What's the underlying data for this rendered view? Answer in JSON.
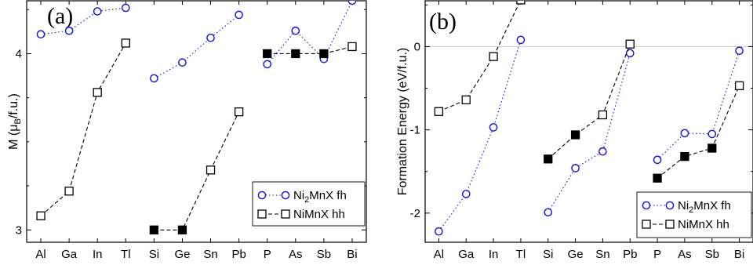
{
  "chart_data": [
    {
      "type": "scatter",
      "panel_label": "(a)",
      "ylabel": {
        "main": "M  (",
        "mu": "μ",
        "sub": "B",
        "rest": "/f.u.)"
      },
      "categories": [
        "Al",
        "Ga",
        "In",
        "Tl",
        "Si",
        "Ge",
        "Sn",
        "Pb",
        "P",
        "As",
        "Sb",
        "Bi"
      ],
      "groups": [
        [
          0,
          1,
          2,
          3
        ],
        [
          4,
          5,
          6,
          7
        ],
        [
          8,
          9,
          10,
          11
        ]
      ],
      "ylim": [
        2.93,
        4.3
      ],
      "yticks": [
        "3",
        "4"
      ],
      "ytick_values": [
        3,
        4
      ],
      "series": [
        {
          "name_parts": [
            "Ni",
            "2",
            "MnX fh"
          ],
          "marker": "circle",
          "color": "#1010e0",
          "line": "dotted",
          "values": [
            4.11,
            4.13,
            4.24,
            4.26,
            3.86,
            3.95,
            4.09,
            4.22,
            3.94,
            4.13,
            3.97,
            4.3
          ],
          "filled": [
            false,
            false,
            false,
            false,
            false,
            false,
            false,
            false,
            false,
            false,
            false,
            false
          ]
        },
        {
          "name_parts": [
            "NiMnX hh"
          ],
          "marker": "square",
          "color": "#000000",
          "line": "dashed",
          "values": [
            3.08,
            3.22,
            3.78,
            4.06,
            3.0,
            3.0,
            3.34,
            3.67,
            4.0,
            4.0,
            4.0,
            4.04
          ],
          "filled": [
            false,
            false,
            false,
            false,
            true,
            true,
            false,
            false,
            true,
            true,
            true,
            false
          ]
        }
      ],
      "legend_position": "bottom-right"
    },
    {
      "type": "scatter",
      "panel_label": "(b)",
      "ylabel": {
        "main": "Formation Energy  (eV/f.u.)"
      },
      "categories": [
        "Al",
        "Ga",
        "In",
        "Tl",
        "Si",
        "Ge",
        "Sn",
        "Pb",
        "P",
        "As",
        "Sb",
        "Bi"
      ],
      "groups": [
        [
          0,
          1,
          2,
          3
        ],
        [
          4,
          5,
          6,
          7
        ],
        [
          8,
          9,
          10,
          11
        ]
      ],
      "ylim": [
        -2.35,
        0.55
      ],
      "yticks": [
        "-2",
        "-1",
        "0"
      ],
      "ytick_values": [
        -2,
        -1,
        0
      ],
      "zero_line": true,
      "series": [
        {
          "name_parts": [
            "Ni",
            "2",
            "MnX fh"
          ],
          "marker": "circle",
          "color": "#1010e0",
          "line": "dotted",
          "values": [
            -2.22,
            -1.77,
            -0.97,
            0.08,
            -1.99,
            -1.46,
            -1.26,
            -0.08,
            -1.36,
            -1.04,
            -1.05,
            -0.05
          ],
          "filled": [
            false,
            false,
            false,
            false,
            false,
            false,
            false,
            false,
            false,
            false,
            false,
            false
          ]
        },
        {
          "name_parts": [
            "NiMnX hh"
          ],
          "marker": "square",
          "color": "#000000",
          "line": "dashed",
          "values": [
            -0.78,
            -0.64,
            -0.12,
            0.56,
            -1.35,
            -1.06,
            -0.82,
            0.03,
            -1.58,
            -1.32,
            -1.22,
            -0.47
          ],
          "filled": [
            false,
            false,
            false,
            false,
            true,
            true,
            false,
            false,
            true,
            true,
            true,
            false
          ]
        }
      ],
      "legend_position": "bottom-right"
    }
  ]
}
